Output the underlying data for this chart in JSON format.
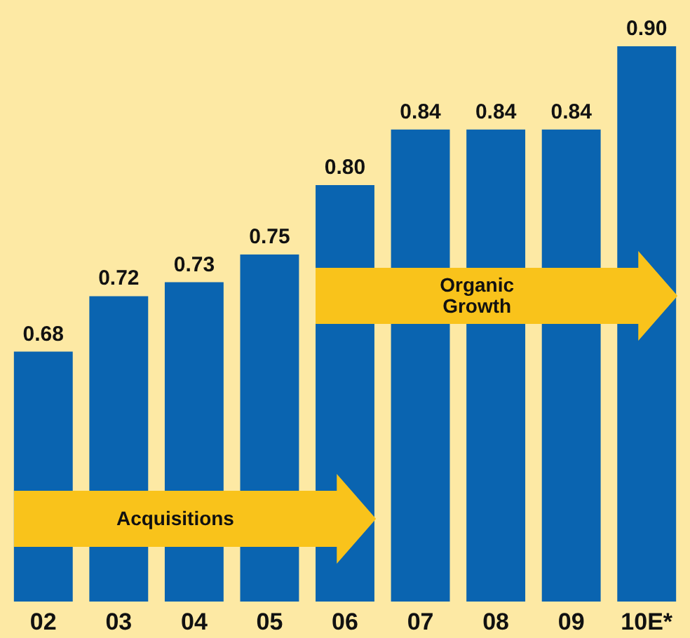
{
  "chart_data": {
    "type": "bar",
    "categories": [
      "02",
      "03",
      "04",
      "05",
      "06",
      "07",
      "08",
      "09",
      "10E*"
    ],
    "values": [
      0.68,
      0.72,
      0.73,
      0.75,
      0.8,
      0.84,
      0.84,
      0.84,
      0.9
    ],
    "value_labels": [
      "0.68",
      "0.72",
      "0.73",
      "0.75",
      "0.80",
      "0.84",
      "0.84",
      "0.84",
      "0.90"
    ],
    "color": "#0a64b0",
    "ylim": [
      0.5,
      0.9
    ],
    "data_labels": true,
    "annotations": [
      "Acquisitions",
      "Organic\nGrowth"
    ]
  }
}
